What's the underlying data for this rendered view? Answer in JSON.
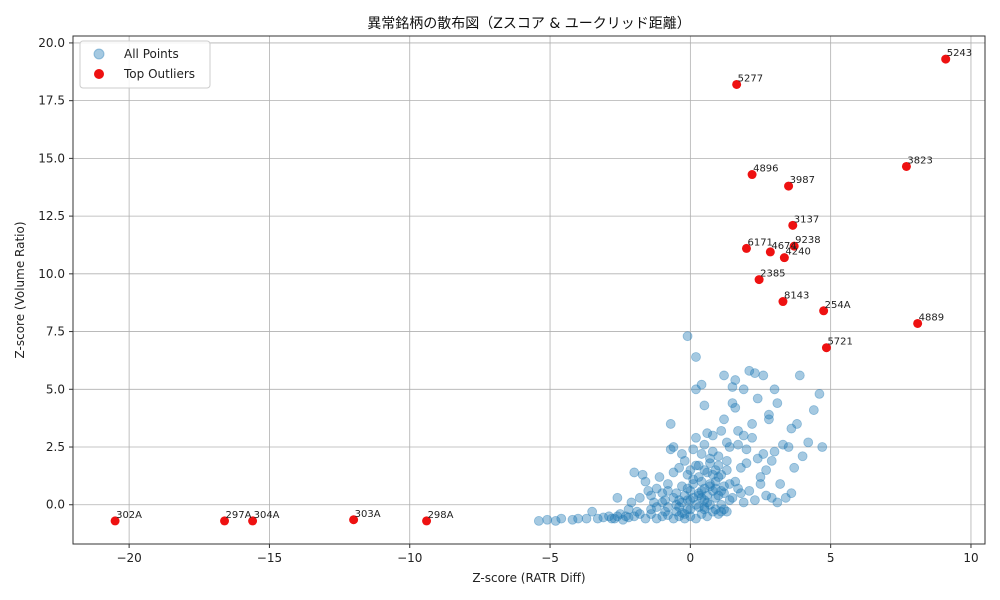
{
  "chart_data": {
    "type": "scatter",
    "title": "異常銘柄の散布図（Zスコア & ユークリッド距離）",
    "xlabel": "Z-score (RATR Diff)",
    "ylabel": "Z-score (Volume Ratio)",
    "xlim": [
      -22,
      10.5
    ],
    "ylim": [
      -1.7,
      20.3
    ],
    "xticks": [
      -20,
      -15,
      -10,
      -5,
      0,
      5,
      10
    ],
    "yticks": [
      0.0,
      2.5,
      5.0,
      7.5,
      10.0,
      12.5,
      15.0,
      17.5,
      20.0
    ],
    "xtick_labels": [
      "−20",
      "−15",
      "−10",
      "−5",
      "0",
      "5",
      "10"
    ],
    "ytick_labels": [
      "0.0",
      "2.5",
      "5.0",
      "7.5",
      "10.0",
      "12.5",
      "15.0",
      "17.5",
      "20.0"
    ],
    "grid": true,
    "legend_position": "top-left",
    "series": [
      {
        "name": "All Points",
        "color": "#1f77b4",
        "alpha": 0.4,
        "points": [
          [
            -5.4,
            -0.7
          ],
          [
            -5.1,
            -0.65
          ],
          [
            -4.8,
            -0.7
          ],
          [
            -4.6,
            -0.6
          ],
          [
            -4.2,
            -0.65
          ],
          [
            -4.0,
            -0.6
          ],
          [
            -3.7,
            -0.6
          ],
          [
            -3.5,
            -0.3
          ],
          [
            -3.3,
            -0.6
          ],
          [
            -3.1,
            -0.55
          ],
          [
            -2.9,
            -0.5
          ],
          [
            -2.7,
            -0.6
          ],
          [
            -2.6,
            0.3
          ],
          [
            -2.5,
            -0.4
          ],
          [
            -2.3,
            -0.5
          ],
          [
            -2.2,
            -0.2
          ],
          [
            -2.1,
            0.1
          ],
          [
            -2.0,
            1.4
          ],
          [
            -1.9,
            -0.3
          ],
          [
            -1.8,
            0.3
          ],
          [
            -1.7,
            1.3
          ],
          [
            -1.6,
            1.0
          ],
          [
            -1.5,
            0.6
          ],
          [
            -1.4,
            -0.2
          ],
          [
            -1.3,
            0.1
          ],
          [
            -1.2,
            0.7
          ],
          [
            -1.1,
            1.2
          ],
          [
            -1.0,
            0.5
          ],
          [
            -0.9,
            0.2
          ],
          [
            -0.8,
            -0.1
          ],
          [
            -0.8,
            0.9
          ],
          [
            -0.7,
            3.5
          ],
          [
            -0.7,
            2.4
          ],
          [
            -0.6,
            2.5
          ],
          [
            -0.6,
            1.4
          ],
          [
            -0.5,
            0.5
          ],
          [
            -0.5,
            -0.3
          ],
          [
            -0.4,
            1.6
          ],
          [
            -0.4,
            0.2
          ],
          [
            -0.3,
            2.2
          ],
          [
            -0.3,
            0.8
          ],
          [
            -0.2,
            1.9
          ],
          [
            -0.2,
            -0.4
          ],
          [
            -0.1,
            7.3
          ],
          [
            -0.1,
            1.3
          ],
          [
            0.0,
            0.6
          ],
          [
            0.0,
            -0.2
          ],
          [
            0.1,
            2.4
          ],
          [
            0.1,
            1.1
          ],
          [
            0.2,
            6.4
          ],
          [
            0.2,
            5.0
          ],
          [
            0.2,
            2.9
          ],
          [
            0.3,
            1.7
          ],
          [
            0.3,
            0.4
          ],
          [
            0.4,
            5.2
          ],
          [
            0.4,
            2.2
          ],
          [
            0.4,
            1.0
          ],
          [
            0.5,
            4.3
          ],
          [
            0.5,
            2.6
          ],
          [
            0.5,
            -0.1
          ],
          [
            0.6,
            3.1
          ],
          [
            0.6,
            1.4
          ],
          [
            0.7,
            2.0
          ],
          [
            0.7,
            0.8
          ],
          [
            0.8,
            3.0
          ],
          [
            0.8,
            2.3
          ],
          [
            0.9,
            1.5
          ],
          [
            0.9,
            0.3
          ],
          [
            1.0,
            2.1
          ],
          [
            1.0,
            1.2
          ],
          [
            1.1,
            3.2
          ],
          [
            1.1,
            0.6
          ],
          [
            1.2,
            5.6
          ],
          [
            1.2,
            3.7
          ],
          [
            1.3,
            2.7
          ],
          [
            1.3,
            1.9
          ],
          [
            1.4,
            2.5
          ],
          [
            1.4,
            0.9
          ],
          [
            1.5,
            4.4
          ],
          [
            1.5,
            5.1
          ],
          [
            1.6,
            4.2
          ],
          [
            1.6,
            5.4
          ],
          [
            1.7,
            3.2
          ],
          [
            1.7,
            2.6
          ],
          [
            1.8,
            1.6
          ],
          [
            1.8,
            0.5
          ],
          [
            1.9,
            3.0
          ],
          [
            1.9,
            5.0
          ],
          [
            2.0,
            2.4
          ],
          [
            2.0,
            1.8
          ],
          [
            2.1,
            5.8
          ],
          [
            2.2,
            3.5
          ],
          [
            2.2,
            2.9
          ],
          [
            2.3,
            5.7
          ],
          [
            2.4,
            4.6
          ],
          [
            2.4,
            2.0
          ],
          [
            2.5,
            1.2
          ],
          [
            2.6,
            5.6
          ],
          [
            2.6,
            2.2
          ],
          [
            2.7,
            0.4
          ],
          [
            2.8,
            3.9
          ],
          [
            2.8,
            3.7
          ],
          [
            2.9,
            1.9
          ],
          [
            3.0,
            5.0
          ],
          [
            3.0,
            2.3
          ],
          [
            3.1,
            4.4
          ],
          [
            3.2,
            0.9
          ],
          [
            3.3,
            2.6
          ],
          [
            3.5,
            2.5
          ],
          [
            3.6,
            0.5
          ],
          [
            3.6,
            3.3
          ],
          [
            3.7,
            1.6
          ],
          [
            3.8,
            3.5
          ],
          [
            3.9,
            5.6
          ],
          [
            4.0,
            2.1
          ],
          [
            4.2,
            2.7
          ],
          [
            4.4,
            4.1
          ],
          [
            4.6,
            4.8
          ],
          [
            4.7,
            2.5
          ],
          [
            3.4,
            0.3
          ],
          [
            -0.6,
            -0.6
          ],
          [
            -0.4,
            -0.5
          ],
          [
            -0.2,
            -0.6
          ],
          [
            0.0,
            -0.5
          ],
          [
            0.2,
            -0.6
          ],
          [
            0.4,
            -0.4
          ],
          [
            0.6,
            -0.5
          ],
          [
            0.8,
            -0.3
          ],
          [
            1.0,
            -0.4
          ],
          [
            1.2,
            -0.2
          ],
          [
            -1.2,
            -0.6
          ],
          [
            -1.0,
            -0.5
          ],
          [
            -0.8,
            -0.45
          ],
          [
            -1.6,
            -0.6
          ],
          [
            -2.4,
            -0.65
          ],
          [
            -2.8,
            -0.6
          ],
          [
            -1.4,
            -0.4
          ],
          [
            -0.9,
            -0.3
          ],
          [
            -0.3,
            -0.35
          ],
          [
            0.5,
            -0.2
          ],
          [
            -0.5,
            0.0
          ],
          [
            -0.3,
            0.1
          ],
          [
            -0.1,
            0.2
          ],
          [
            0.1,
            0.3
          ],
          [
            0.3,
            0.5
          ],
          [
            0.5,
            0.7
          ],
          [
            0.7,
            0.9
          ],
          [
            0.9,
            1.0
          ],
          [
            1.1,
            1.3
          ],
          [
            1.3,
            1.5
          ],
          [
            -0.2,
            0.4
          ],
          [
            0.0,
            0.2
          ],
          [
            0.2,
            0.0
          ],
          [
            0.4,
            0.3
          ],
          [
            0.6,
            0.1
          ],
          [
            0.8,
            0.6
          ],
          [
            1.0,
            0.4
          ],
          [
            1.2,
            0.8
          ],
          [
            1.4,
            0.2
          ],
          [
            1.6,
            1.0
          ],
          [
            -0.4,
            -0.1
          ],
          [
            -0.6,
            0.3
          ],
          [
            -0.8,
            0.6
          ],
          [
            -1.0,
            0.1
          ],
          [
            -1.2,
            -0.1
          ],
          [
            -1.4,
            0.4
          ],
          [
            -1.8,
            -0.4
          ],
          [
            -2.0,
            -0.5
          ],
          [
            -2.2,
            -0.55
          ],
          [
            -2.6,
            -0.5
          ],
          [
            0.1,
            0.9
          ],
          [
            0.3,
            1.2
          ],
          [
            0.5,
            1.5
          ],
          [
            0.7,
            1.8
          ],
          [
            0.9,
            0.7
          ],
          [
            1.1,
            0.0
          ],
          [
            1.3,
            -0.3
          ],
          [
            1.5,
            0.3
          ],
          [
            1.7,
            0.7
          ],
          [
            1.9,
            0.1
          ],
          [
            2.1,
            0.6
          ],
          [
            2.3,
            0.2
          ],
          [
            2.5,
            0.9
          ],
          [
            2.7,
            1.5
          ],
          [
            2.9,
            0.3
          ],
          [
            3.1,
            0.1
          ],
          [
            0.0,
            1.5
          ],
          [
            -0.1,
            0.7
          ],
          [
            0.2,
            1.7
          ],
          [
            0.4,
            0.6
          ],
          [
            0.6,
            0.4
          ],
          [
            0.8,
            1.3
          ],
          [
            1.0,
            1.7
          ],
          [
            1.2,
            0.5
          ],
          [
            0.3,
            -0.1
          ],
          [
            0.5,
            0.2
          ],
          [
            0.7,
            0.0
          ],
          [
            0.9,
            -0.2
          ],
          [
            1.1,
            -0.3
          ],
          [
            -0.1,
            -0.2
          ]
        ]
      },
      {
        "name": "Top Outliers",
        "color": "#ee1111",
        "points": [
          {
            "x": 9.1,
            "y": 19.3,
            "label": "5243"
          },
          {
            "x": 1.65,
            "y": 18.2,
            "label": "5277"
          },
          {
            "x": 7.7,
            "y": 14.65,
            "label": "3823"
          },
          {
            "x": 2.2,
            "y": 14.3,
            "label": "4896"
          },
          {
            "x": 3.5,
            "y": 13.8,
            "label": "3987"
          },
          {
            "x": 3.65,
            "y": 12.1,
            "label": "3137"
          },
          {
            "x": 3.7,
            "y": 11.2,
            "label": "9238"
          },
          {
            "x": 2.0,
            "y": 11.1,
            "label": "6171"
          },
          {
            "x": 2.85,
            "y": 10.95,
            "label": "4674"
          },
          {
            "x": 3.35,
            "y": 10.7,
            "label": "4240"
          },
          {
            "x": 2.45,
            "y": 9.75,
            "label": "2385"
          },
          {
            "x": 3.3,
            "y": 8.8,
            "label": "8143"
          },
          {
            "x": 4.75,
            "y": 8.4,
            "label": "254A"
          },
          {
            "x": 8.1,
            "y": 7.85,
            "label": "4889"
          },
          {
            "x": 4.85,
            "y": 6.8,
            "label": "5721"
          },
          {
            "x": -20.5,
            "y": -0.7,
            "label": "302A"
          },
          {
            "x": -16.6,
            "y": -0.7,
            "label": "297A"
          },
          {
            "x": -15.6,
            "y": -0.7,
            "label": "304A"
          },
          {
            "x": -12.0,
            "y": -0.65,
            "label": "303A"
          },
          {
            "x": -9.4,
            "y": -0.7,
            "label": "298A"
          }
        ]
      }
    ]
  }
}
